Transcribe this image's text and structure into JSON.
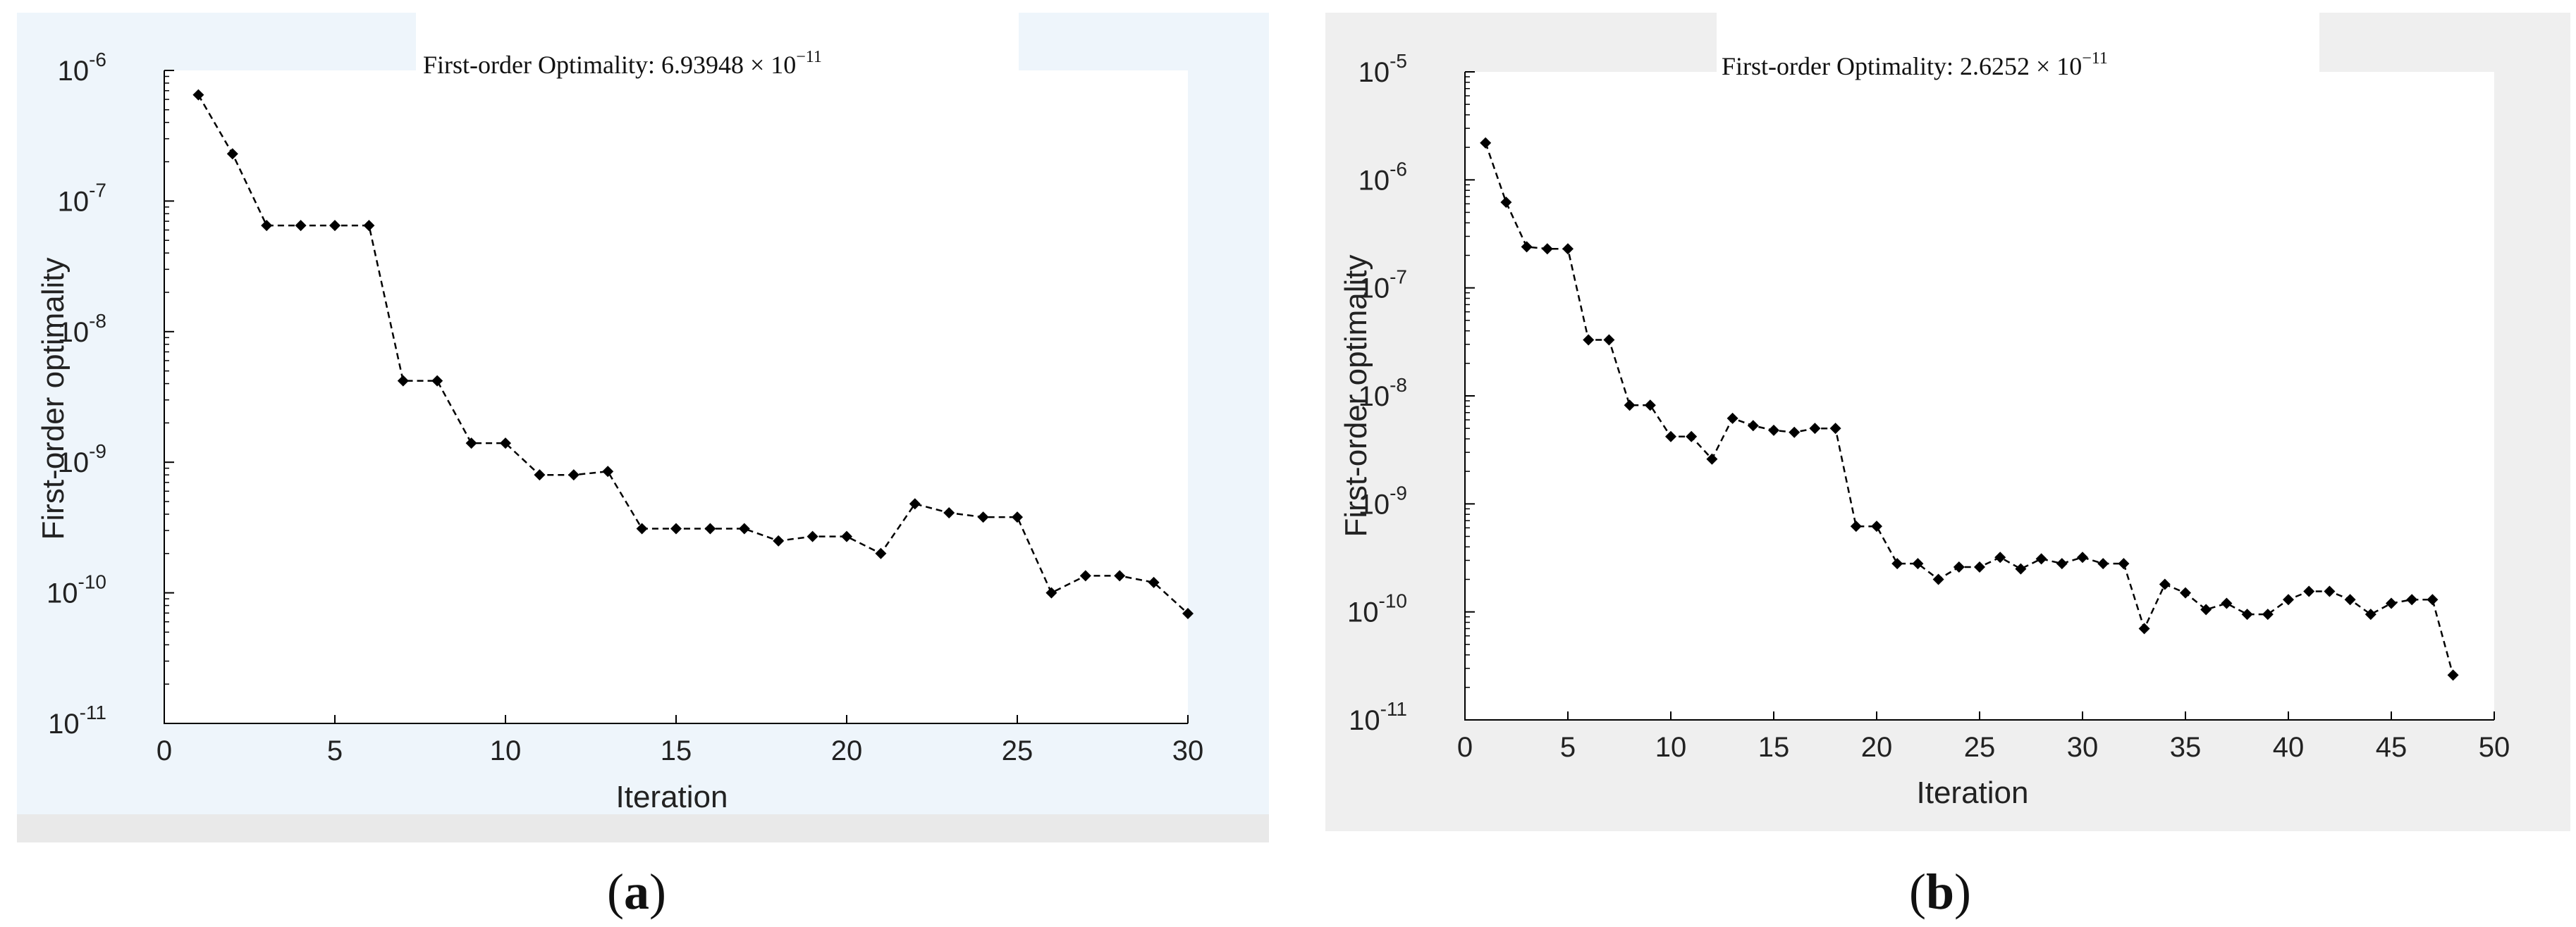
{
  "chart_data": [
    {
      "type": "line",
      "panel_label": "a",
      "title_text": "First-order Optimality: 6.93948 × 10",
      "title_exp": "−11",
      "xlabel": "Iteration",
      "ylabel": "First-order optimality",
      "xlim": [
        0,
        30
      ],
      "ylim_exp": [
        -11,
        -6
      ],
      "yscale": "log",
      "xticks": [
        0,
        5,
        10,
        15,
        20,
        25,
        30
      ],
      "yticks_exp": [
        -11,
        -10,
        -9,
        -8,
        -7,
        -6
      ],
      "ytick_base": "10",
      "background": "#eef5fb",
      "marker_color": "#000000",
      "line_style": "dashed",
      "x": [
        1,
        2,
        3,
        4,
        5,
        6,
        7,
        8,
        9,
        10,
        11,
        12,
        13,
        14,
        15,
        16,
        17,
        18,
        19,
        20,
        21,
        22,
        23,
        24,
        25,
        26,
        27,
        28,
        29,
        30
      ],
      "y": [
        6.5e-07,
        2.3e-07,
        6.5e-08,
        6.5e-08,
        6.5e-08,
        6.5e-08,
        4.2e-09,
        4.2e-09,
        1.4e-09,
        1.4e-09,
        8e-10,
        8e-10,
        8.5e-10,
        3.1e-10,
        3.1e-10,
        3.1e-10,
        3.1e-10,
        2.5e-10,
        2.7e-10,
        2.7e-10,
        2e-10,
        4.8e-10,
        4.1e-10,
        3.8e-10,
        3.8e-10,
        1e-10,
        1.35e-10,
        1.35e-10,
        1.2e-10,
        6.94e-11
      ]
    },
    {
      "type": "line",
      "panel_label": "b",
      "title_text": "First-order Optimality: 2.6252 × 10",
      "title_exp": "−11",
      "xlabel": "Iteration",
      "ylabel": "First-order optimality",
      "xlim": [
        0,
        50
      ],
      "ylim_exp": [
        -11,
        -5
      ],
      "yscale": "log",
      "xticks": [
        0,
        5,
        10,
        15,
        20,
        25,
        30,
        35,
        40,
        45,
        50
      ],
      "yticks_exp": [
        -11,
        -10,
        -9,
        -8,
        -7,
        -6,
        -5
      ],
      "ytick_base": "10",
      "background": "#efefef",
      "marker_color": "#000000",
      "line_style": "dashed",
      "x": [
        1,
        2,
        3,
        4,
        5,
        6,
        7,
        8,
        9,
        10,
        11,
        12,
        13,
        14,
        15,
        16,
        17,
        18,
        19,
        20,
        21,
        22,
        23,
        24,
        25,
        26,
        27,
        28,
        29,
        30,
        31,
        32,
        33,
        34,
        35,
        36,
        37,
        38,
        39,
        40,
        41,
        42,
        43,
        44,
        45,
        46,
        47,
        48
      ],
      "y": [
        2.2e-06,
        6.2e-07,
        2.4e-07,
        2.3e-07,
        2.3e-07,
        3.3e-08,
        3.3e-08,
        8.2e-09,
        8.2e-09,
        4.2e-09,
        4.2e-09,
        2.6e-09,
        6.2e-09,
        5.3e-09,
        4.8e-09,
        4.6e-09,
        5e-09,
        5e-09,
        6.2e-10,
        6.2e-10,
        2.8e-10,
        2.8e-10,
        2e-10,
        2.6e-10,
        2.6e-10,
        3.2e-10,
        2.5e-10,
        3.1e-10,
        2.8e-10,
        3.2e-10,
        2.8e-10,
        2.8e-10,
        7e-11,
        1.8e-10,
        1.5e-10,
        1.05e-10,
        1.2e-10,
        9.5e-11,
        9.5e-11,
        1.3e-10,
        1.55e-10,
        1.55e-10,
        1.3e-10,
        9.5e-11,
        1.2e-10,
        1.3e-10,
        1.3e-10,
        2.6e-11
      ]
    }
  ]
}
